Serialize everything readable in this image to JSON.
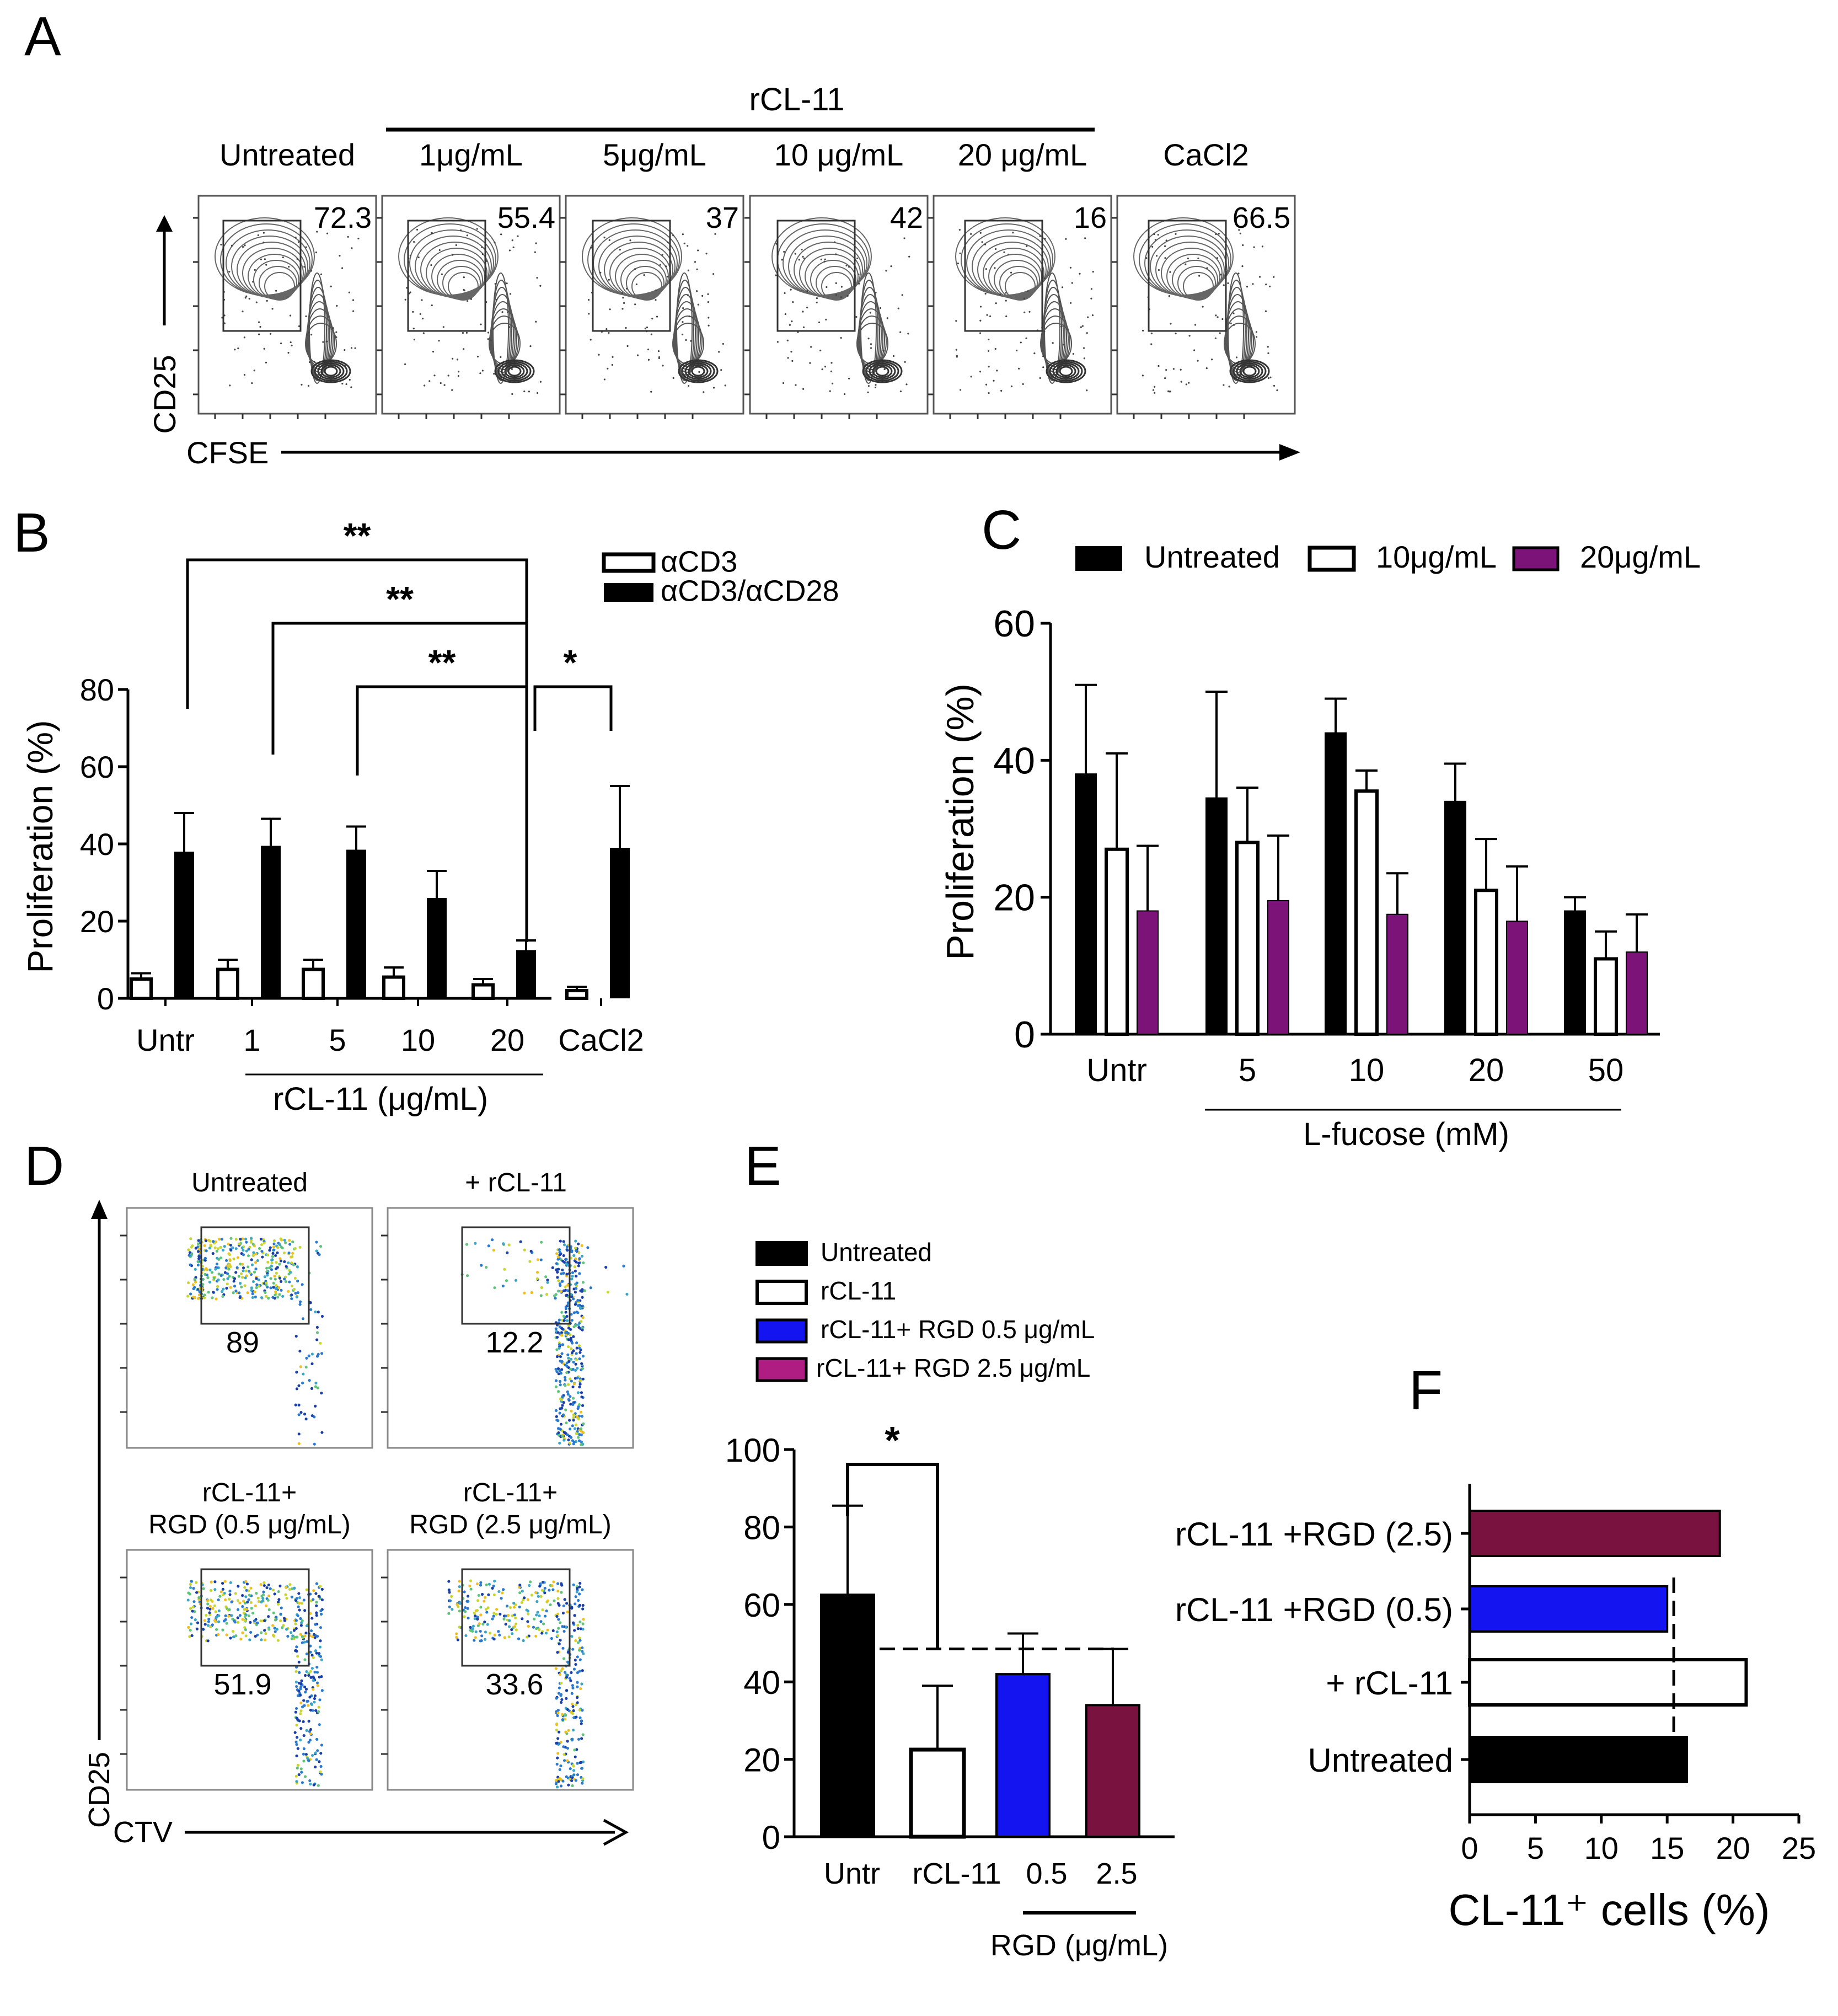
{
  "colors": {
    "black": "#000000",
    "white": "#ffffff",
    "purple": "#7b1379",
    "blue": "#1414f0",
    "maroon": "#7a1240",
    "contour": "#555555"
  },
  "panel_letters": [
    "A",
    "B",
    "C",
    "D",
    "E",
    "F"
  ],
  "panel_a": {
    "group_label": "rCL-11",
    "y_label": "CD25",
    "x_label": "CFSE",
    "plots": [
      {
        "title": "Untreated",
        "value": "72.3"
      },
      {
        "title": "1μg/mL",
        "value": "55.4"
      },
      {
        "title": "5μg/mL",
        "value": "37"
      },
      {
        "title": "10 μg/mL",
        "value": "42"
      },
      {
        "title": "20 μg/mL",
        "value": "16"
      },
      {
        "title": "CaCl2",
        "value": "66.5"
      }
    ]
  },
  "panel_d": {
    "y_label": "CD25",
    "x_label": "CTV",
    "plots": [
      {
        "title": "Untreated",
        "value": "89"
      },
      {
        "title": "+ rCL-11",
        "value": "12.2"
      },
      {
        "title": "rCL-11+\nRGD (0.5 μg/mL)",
        "value": "51.9"
      },
      {
        "title": "rCL-11+\nRGD (2.5 μg/mL)",
        "value": "33.6"
      }
    ]
  },
  "chart_data": [
    {
      "panel": "B",
      "type": "bar",
      "title": "",
      "ylabel": "Proliferation (%)",
      "xlabel": "rCL-11 (μg/mL)",
      "ylim": [
        0,
        80
      ],
      "yticks": [
        0,
        20,
        40,
        60,
        80
      ],
      "categories": [
        "Untr",
        "1",
        "5",
        "10",
        "20",
        "CaCl2"
      ],
      "series": [
        {
          "name": "αCD3",
          "color": "#ffffff",
          "values": [
            5,
            7.5,
            7.5,
            5.5,
            3.5,
            2
          ],
          "errors": [
            1.5,
            2.5,
            2.5,
            2.5,
            1.5,
            1
          ]
        },
        {
          "name": "αCD3/αCD28",
          "color": "#000000",
          "values": [
            38,
            39.5,
            38.5,
            26,
            12.5,
            39
          ],
          "errors": [
            10,
            7,
            6,
            7,
            2.5,
            16
          ]
        }
      ],
      "significance": [
        {
          "from": "Untr",
          "to": "20",
          "label": "**"
        },
        {
          "from": "1",
          "to": "20",
          "label": "**"
        },
        {
          "from": "5",
          "to": "20",
          "label": "**"
        },
        {
          "from": "20",
          "to": "CaCl2",
          "label": "*"
        }
      ]
    },
    {
      "panel": "C",
      "type": "bar",
      "title": "",
      "ylabel": "Proliferation (%)",
      "xlabel": "L-fucose (mM)",
      "ylim": [
        0,
        60
      ],
      "yticks": [
        0,
        20,
        40,
        60
      ],
      "categories": [
        "Untr",
        "5",
        "10",
        "20",
        "50"
      ],
      "series": [
        {
          "name": "Untreated",
          "color": "#000000",
          "values": [
            38,
            34.5,
            44,
            34,
            18
          ],
          "errors": [
            13,
            15.5,
            5,
            5.5,
            2
          ]
        },
        {
          "name": "10μg/mL",
          "color": "#ffffff",
          "values": [
            27,
            28,
            35.5,
            21,
            11
          ],
          "errors": [
            14,
            8,
            3,
            7.5,
            4
          ]
        },
        {
          "name": "20μg/mL",
          "color": "#7b1379",
          "values": [
            18,
            19.5,
            17.5,
            16.5,
            12
          ],
          "errors": [
            9.5,
            9.5,
            6,
            8,
            5.5
          ]
        }
      ]
    },
    {
      "panel": "E",
      "type": "bar",
      "title": "",
      "ylabel": "",
      "xlabel": "RGD (μg/mL)",
      "ylim": [
        0,
        100
      ],
      "yticks": [
        0,
        20,
        40,
        60,
        80,
        100
      ],
      "categories": [
        "Untr",
        "rCL-11",
        "0.5",
        "2.5"
      ],
      "series": [
        {
          "name": "Untreated",
          "color": "#000000"
        },
        {
          "name": "rCL-11",
          "color": "#ffffff"
        },
        {
          "name": "rCL-11+ RGD 0.5 μg/mL",
          "color": "#1414f0"
        },
        {
          "name": "rCL-11+ RGD 2.5 μg/mL",
          "color": "#7a1240"
        }
      ],
      "values": [
        62.5,
        22.5,
        42,
        34
      ],
      "errors": [
        23,
        16.5,
        10.5,
        14.5
      ],
      "reference_line": 48.5,
      "significance": [
        {
          "from": "Untr",
          "to": "rCL-11",
          "label": "*"
        }
      ]
    },
    {
      "panel": "F",
      "type": "bar",
      "orientation": "horizontal",
      "title": "",
      "xlabel": "CL-11⁺ cells (%)",
      "ylabel": "",
      "xlim": [
        0,
        25
      ],
      "xticks": [
        0,
        5,
        10,
        15,
        20,
        25
      ],
      "categories": [
        "rCL-11 +RGD (2.5)",
        "rCL-11 +RGD (0.5)",
        "+ rCL-11",
        "Untreated"
      ],
      "values": [
        19,
        15,
        21,
        16.5
      ],
      "colors": [
        "#7a1240",
        "#1414f0",
        "#ffffff",
        "#000000"
      ],
      "reference_line": 15.5
    }
  ]
}
